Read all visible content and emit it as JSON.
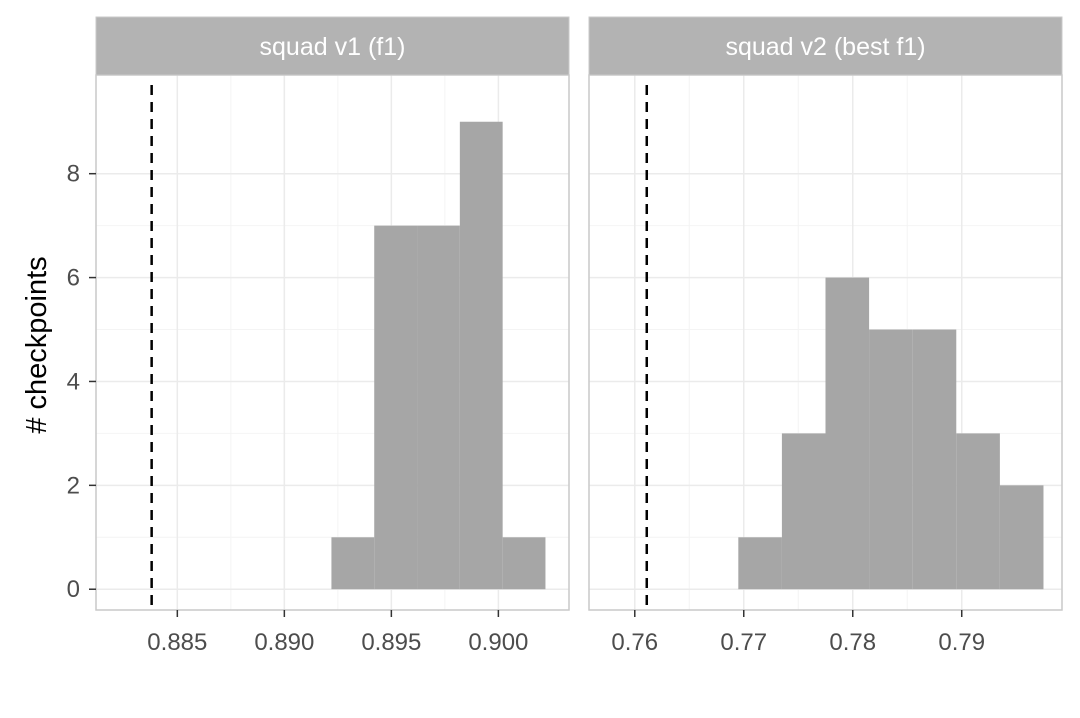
{
  "chart_data": {
    "type": "bar",
    "ylabel": "# checkpoints",
    "ylim": [
      -0.4,
      9.9
    ],
    "yticks": [
      0,
      2,
      4,
      6,
      8
    ],
    "colors": {
      "bar": "#a6a6a6",
      "strip": "#b3b3b3",
      "grid": "#ebebeb",
      "border": "#c9c9c9",
      "reference_line": "#000000"
    },
    "panels": [
      {
        "title": "squad v1 (f1)",
        "xlim": [
          0.8812,
          0.9033
        ],
        "xticks": [
          0.885,
          0.89,
          0.895,
          0.9
        ],
        "xtick_labels": [
          "0.885",
          "0.890",
          "0.895",
          "0.900"
        ],
        "reference_value": 0.8838,
        "bars": [
          {
            "x0": 0.8922,
            "x1": 0.8942,
            "count": 1
          },
          {
            "x0": 0.8942,
            "x1": 0.8962,
            "count": 7
          },
          {
            "x0": 0.8962,
            "x1": 0.8982,
            "count": 7
          },
          {
            "x0": 0.8982,
            "x1": 0.9002,
            "count": 9
          },
          {
            "x0": 0.9002,
            "x1": 0.9022,
            "count": 1
          }
        ]
      },
      {
        "title": "squad v2 (best f1)",
        "xlim": [
          0.7558,
          0.7992
        ],
        "xticks": [
          0.76,
          0.77,
          0.78,
          0.79
        ],
        "xtick_labels": [
          "0.76",
          "0.77",
          "0.78",
          "0.79"
        ],
        "reference_value": 0.7611,
        "bars": [
          {
            "x0": 0.7695,
            "x1": 0.7735,
            "count": 1
          },
          {
            "x0": 0.7735,
            "x1": 0.7775,
            "count": 3
          },
          {
            "x0": 0.7775,
            "x1": 0.7815,
            "count": 6
          },
          {
            "x0": 0.7815,
            "x1": 0.7855,
            "count": 5
          },
          {
            "x0": 0.7855,
            "x1": 0.7895,
            "count": 5
          },
          {
            "x0": 0.7895,
            "x1": 0.7935,
            "count": 3
          },
          {
            "x0": 0.7935,
            "x1": 0.7975,
            "count": 2
          }
        ]
      }
    ]
  }
}
